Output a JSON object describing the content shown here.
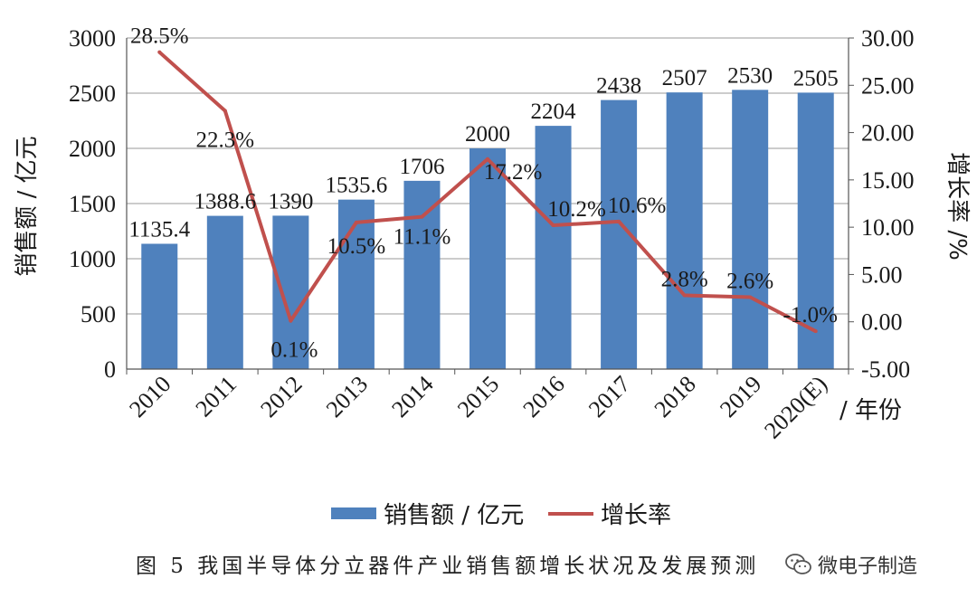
{
  "chart_data": {
    "type": "bar",
    "categories": [
      "2010",
      "2011",
      "2012",
      "2013",
      "2014",
      "2015",
      "2016",
      "2017",
      "2018",
      "2019",
      "2020(E)"
    ],
    "x_unit_label": "/ 年份",
    "series": [
      {
        "name": "销售额 / 亿元",
        "type": "bar",
        "axis": "left",
        "color": "#4F81BD",
        "values": [
          1135.4,
          1388.6,
          1390,
          1535.6,
          1706,
          2000,
          2204,
          2438,
          2507,
          2530,
          2505
        ],
        "labels": [
          "1135.4",
          "1388.6",
          "1390",
          "1535.6",
          "1706",
          "2000",
          "2204",
          "2438",
          "2507",
          "2530",
          "2505"
        ]
      },
      {
        "name": "增长率",
        "type": "line",
        "axis": "right",
        "color": "#C0504D",
        "values": [
          28.5,
          22.3,
          0.1,
          10.5,
          11.1,
          17.2,
          10.2,
          10.6,
          2.8,
          2.6,
          -1.0
        ],
        "labels": [
          "28.5%",
          "22.3%",
          "0.1%",
          "10.5%",
          "11.1%",
          "17.2%",
          "10.2%",
          "10.6%",
          "2.8%",
          "2.6%",
          "-1.0%"
        ]
      }
    ],
    "y_left": {
      "label": "销售额 / 亿元",
      "lim": [
        0,
        3000
      ],
      "ticks": [
        0,
        500,
        1000,
        1500,
        2000,
        2500,
        3000
      ],
      "tick_labels": [
        "0",
        "500",
        "1000",
        "1500",
        "2000",
        "2500",
        "3000"
      ]
    },
    "y_right": {
      "label": "增长率 /%",
      "lim": [
        -5,
        30
      ],
      "ticks": [
        -5,
        0,
        5,
        10,
        15,
        20,
        25,
        30
      ],
      "tick_labels": [
        "-5.00",
        "0.00",
        "5.00",
        "10.00",
        "15.00",
        "20.00",
        "25.00",
        "30.00"
      ]
    },
    "grid": true,
    "legend_position": "bottom",
    "caption": "图 5   我国半导体分立器件产业销售额增长状况及发展预测"
  },
  "watermark": {
    "icon": "wechat-icon",
    "text": "微电子制造"
  }
}
